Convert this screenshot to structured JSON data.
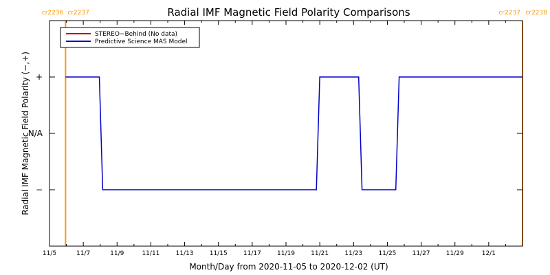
{
  "chart_data": {
    "type": "line",
    "title": "Radial IMF Magnetic Field Polarity Comparisons",
    "xlabel": "Month/Day from 2020-11-05 to 2020-12-02 (UT)",
    "ylabel": "Radial IMF Magnetic Field Polarity (−,+)",
    "x_range_days": [
      0,
      28
    ],
    "x_start_date": "2020-11-05",
    "xticks": [
      {
        "day": 0,
        "label": "11/5"
      },
      {
        "day": 2,
        "label": "11/7"
      },
      {
        "day": 4,
        "label": "11/9"
      },
      {
        "day": 6,
        "label": "11/11"
      },
      {
        "day": 8,
        "label": "11/13"
      },
      {
        "day": 10,
        "label": "11/15"
      },
      {
        "day": 12,
        "label": "11/17"
      },
      {
        "day": 14,
        "label": "11/19"
      },
      {
        "day": 16,
        "label": "11/21"
      },
      {
        "day": 18,
        "label": "11/23"
      },
      {
        "day": 20,
        "label": "11/25"
      },
      {
        "day": 22,
        "label": "11/27"
      },
      {
        "day": 24,
        "label": "11/29"
      },
      {
        "day": 26,
        "label": "12/1"
      }
    ],
    "y_range": [
      -2,
      2
    ],
    "yticks": [
      {
        "value": 1,
        "label": "+"
      },
      {
        "value": 0,
        "label": "N/A"
      },
      {
        "value": -1,
        "label": "−"
      }
    ],
    "series": [
      {
        "name": "STEREO−Behind (No data)",
        "color": "#c00000",
        "points": []
      },
      {
        "name": "Predictive Science MAS Model",
        "color": "#0000c8",
        "points": [
          {
            "x": 0.95,
            "y": 1
          },
          {
            "x": 2.95,
            "y": 1
          },
          {
            "x": 3.15,
            "y": -1
          },
          {
            "x": 15.8,
            "y": -1
          },
          {
            "x": 16.0,
            "y": 1
          },
          {
            "x": 18.3,
            "y": 1
          },
          {
            "x": 18.5,
            "y": -1
          },
          {
            "x": 20.5,
            "y": -1
          },
          {
            "x": 20.7,
            "y": 1
          },
          {
            "x": 28.0,
            "y": 1
          }
        ]
      }
    ],
    "carrington_markers": [
      {
        "day": 0.95,
        "left_label": "cr2236",
        "right_label": "cr2237",
        "color": "#ff9900"
      },
      {
        "day": 28.0,
        "left_label": "cr2237",
        "right_label": "cr2238",
        "color": "#ff9900"
      }
    ],
    "legend_position": "top-left",
    "grid": false
  }
}
